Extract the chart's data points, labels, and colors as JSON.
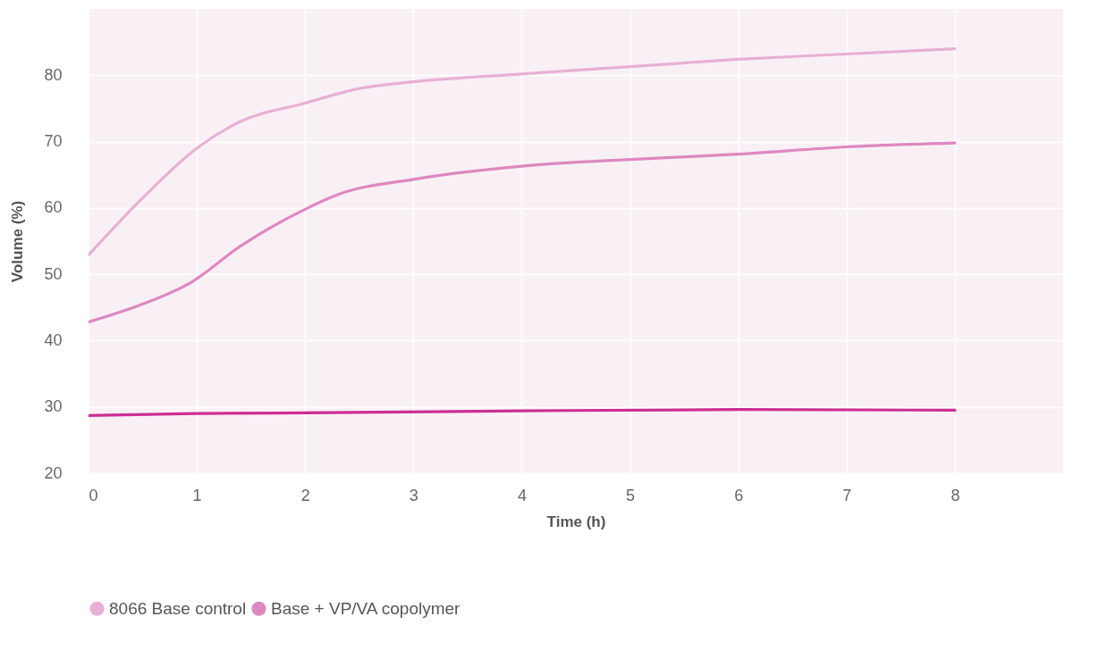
{
  "chart_data": {
    "type": "line",
    "xlabel": "Time (h)",
    "ylabel": "Volume (%)",
    "xlim": [
      0,
      9
    ],
    "xticks": [
      0,
      1,
      2,
      3,
      4,
      5,
      6,
      7,
      8
    ],
    "ylim": [
      20,
      90
    ],
    "yticks": [
      20,
      30,
      40,
      50,
      60,
      70,
      80
    ],
    "grid": true,
    "legend": "bottom",
    "marker": "none",
    "line_style": "solid",
    "series": [
      {
        "name": "8066 Base control",
        "color": "#e8b0d4",
        "x": [
          0,
          0.5,
          1,
          1.4,
          2,
          2.5,
          3,
          4,
          5,
          6,
          7,
          8
        ],
        "values": [
          52.9,
          61.5,
          69.0,
          73.0,
          75.8,
          78.0,
          79.0,
          80.2,
          81.3,
          82.4,
          83.2,
          84.0
        ]
      },
      {
        "name": "Base + VP/VA copolymer",
        "color": "#de88bf",
        "x": [
          0,
          0.5,
          0.95,
          1.4,
          2,
          2.3,
          3,
          4,
          5,
          6,
          7,
          8
        ],
        "values": [
          42.8,
          45.5,
          48.8,
          54.2,
          59.8,
          62.0,
          64.3,
          66.3,
          67.3,
          68.1,
          69.2,
          69.8
        ]
      },
      {
        "color": "#cc2e92",
        "x": [
          0,
          1,
          2,
          4,
          6,
          8
        ],
        "values": [
          28.7,
          29.0,
          29.1,
          29.4,
          29.6,
          29.5
        ]
      }
    ]
  }
}
